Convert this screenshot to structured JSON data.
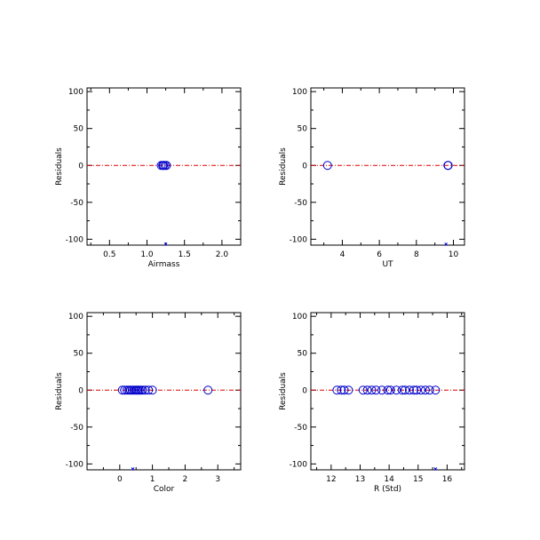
{
  "chart_data": [
    {
      "type": "scatter",
      "xlabel": "Airmass",
      "ylabel": "Residuals",
      "xlim": [
        0.2,
        2.25
      ],
      "ylim": [
        -108,
        105
      ],
      "xticks": [
        "0.5",
        "1.0",
        "1.5",
        "2.0"
      ],
      "xtick_values": [
        0.5,
        1.0,
        1.5,
        2.0
      ],
      "yticks": [
        "-100",
        "-50",
        "0",
        "50",
        "100"
      ],
      "ytick_values": [
        -100,
        -50,
        0,
        50,
        100
      ],
      "x": [
        1.19,
        1.21,
        1.22,
        1.24,
        1.26
      ],
      "y": [
        0,
        0,
        0,
        0,
        0
      ],
      "outlier_x": [
        1.25
      ],
      "zero_line": 0
    },
    {
      "type": "scatter",
      "xlabel": "UT",
      "ylabel": "Residuals",
      "xlim": [
        2.3,
        10.6
      ],
      "ylim": [
        -108,
        105
      ],
      "xticks": [
        "4",
        "6",
        "8",
        "10"
      ],
      "xtick_values": [
        4,
        6,
        8,
        10
      ],
      "yticks": [
        "-100",
        "-50",
        "0",
        "50",
        "100"
      ],
      "ytick_values": [
        -100,
        -50,
        0,
        50,
        100
      ],
      "x": [
        3.2,
        9.7,
        9.72
      ],
      "y": [
        0,
        0,
        0
      ],
      "outlier_x": [
        9.6
      ],
      "zero_line": 0
    },
    {
      "type": "scatter",
      "xlabel": "Color",
      "ylabel": "Residuals",
      "xlim": [
        -1.0,
        3.7
      ],
      "ylim": [
        -108,
        105
      ],
      "xticks": [
        "0",
        "1",
        "2",
        "3"
      ],
      "xtick_values": [
        0,
        1,
        2,
        3
      ],
      "yticks": [
        "-100",
        "-50",
        "0",
        "50",
        "100"
      ],
      "ytick_values": [
        -100,
        -50,
        0,
        50,
        100
      ],
      "x": [
        0.08,
        0.15,
        0.22,
        0.28,
        0.33,
        0.38,
        0.43,
        0.48,
        0.52,
        0.56,
        0.6,
        0.65,
        0.7,
        0.78,
        0.88,
        1.0,
        2.7
      ],
      "y": [
        0,
        0,
        0,
        0,
        0,
        0,
        0,
        0,
        0,
        0,
        0,
        0,
        0,
        0,
        0,
        0,
        0
      ],
      "outlier_x": [
        0.4
      ],
      "zero_line": 0
    },
    {
      "type": "scatter",
      "xlabel": "R (Std)",
      "ylabel": "Residuals",
      "xlim": [
        11.3,
        16.6
      ],
      "ylim": [
        -108,
        105
      ],
      "xticks": [
        "12",
        "13",
        "14",
        "15",
        "16"
      ],
      "xtick_values": [
        12,
        13,
        14,
        15,
        16
      ],
      "yticks": [
        "-100",
        "-50",
        "0",
        "50",
        "100"
      ],
      "ytick_values": [
        -100,
        -50,
        0,
        50,
        100
      ],
      "x": [
        12.2,
        12.35,
        12.45,
        12.6,
        13.1,
        13.25,
        13.4,
        13.55,
        13.75,
        13.95,
        14.05,
        14.25,
        14.45,
        14.55,
        14.7,
        14.85,
        14.95,
        15.1,
        15.25,
        15.4,
        15.6
      ],
      "y": [
        0,
        0,
        0,
        0,
        0,
        0,
        0,
        0,
        0,
        0,
        0,
        0,
        0,
        0,
        0,
        0,
        0,
        0,
        0,
        0,
        0
      ],
      "outlier_x": [
        15.6
      ],
      "zero_line": 0
    }
  ],
  "colors": {
    "markers": "#0000cc",
    "zero_line": "#dd0000",
    "axes": "#000000",
    "background": "#ffffff"
  }
}
